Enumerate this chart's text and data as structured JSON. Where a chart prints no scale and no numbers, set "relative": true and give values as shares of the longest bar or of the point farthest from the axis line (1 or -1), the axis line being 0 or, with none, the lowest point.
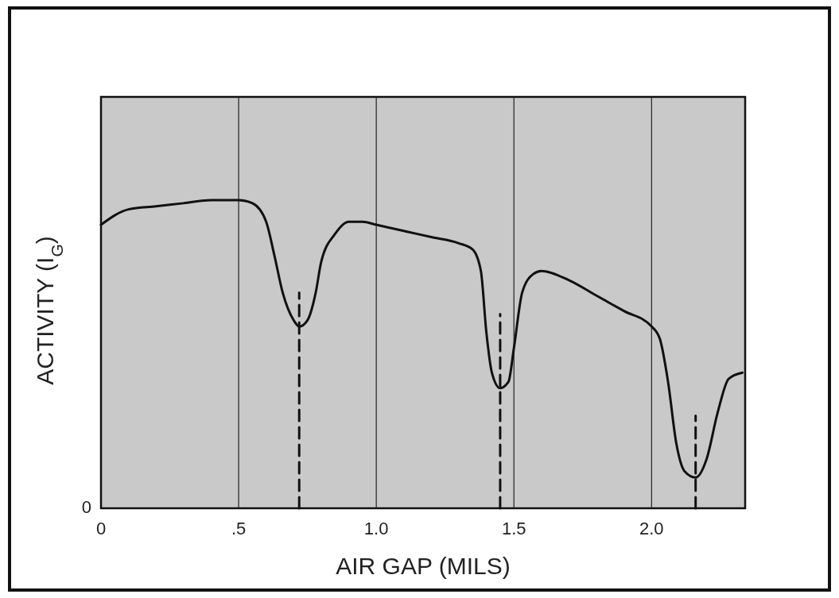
{
  "chart_data": {
    "type": "line",
    "xlabel": "AIR GAP (MILS)",
    "ylabel": "ACTIVITY (I$_{G}$)",
    "relative": true,
    "xlim": [
      0,
      2.34
    ],
    "xticks": [
      0,
      {
        "value": 0.5,
        "label": ".5"
      },
      {
        "value": 1,
        "label": "1.0"
      },
      1.5,
      {
        "value": 2,
        "label": "2.0"
      }
    ],
    "grid": "x",
    "annotations": [
      "0"
    ],
    "series": [
      {
        "color": "#111111",
        "line_style": "solid",
        "x": [
          0,
          0.1,
          0.2,
          0.3,
          0.4,
          0.5,
          0.55,
          0.6,
          0.63,
          0.66,
          0.7,
          0.72,
          0.75,
          0.78,
          0.8,
          0.85,
          0.9,
          0.95,
          1.0,
          1.1,
          1.2,
          1.3,
          1.35,
          1.38,
          1.4,
          1.42,
          1.45,
          1.48,
          1.5,
          1.53,
          1.57,
          1.6,
          1.7,
          1.8,
          1.9,
          2.0,
          2.03,
          2.06,
          2.09,
          2.12,
          2.16,
          2.2,
          2.24,
          2.28,
          2.33
        ],
        "values": [
          0.92,
          0.97,
          0.98,
          0.99,
          1.0,
          1.0,
          0.99,
          0.93,
          0.82,
          0.7,
          0.61,
          0.59,
          0.61,
          0.7,
          0.8,
          0.89,
          0.93,
          0.93,
          0.92,
          0.9,
          0.88,
          0.86,
          0.84,
          0.77,
          0.57,
          0.44,
          0.39,
          0.41,
          0.52,
          0.7,
          0.76,
          0.77,
          0.74,
          0.69,
          0.64,
          0.59,
          0.55,
          0.41,
          0.21,
          0.12,
          0.1,
          0.16,
          0.31,
          0.42,
          0.44
        ]
      },
      {
        "color": "#111111",
        "line_style": "dashed",
        "x": [
          0.72,
          0.72
        ],
        "values": [
          0,
          0.7
        ]
      },
      {
        "color": "#111111",
        "line_style": "dashed",
        "x": [
          1.45,
          1.45
        ],
        "values": [
          0,
          0.63
        ]
      },
      {
        "color": "#111111",
        "line_style": "dashed",
        "x": [
          2.16,
          2.16
        ],
        "values": [
          0,
          0.3
        ]
      }
    ]
  }
}
